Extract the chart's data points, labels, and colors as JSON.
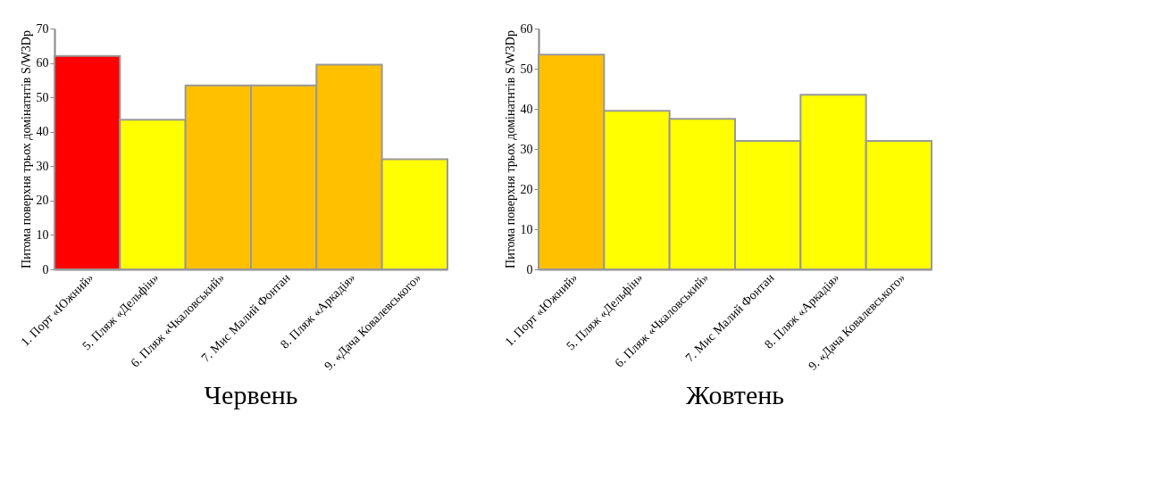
{
  "chart_data": [
    {
      "type": "bar",
      "title": "Червень",
      "ylabel": "Питома поверхня трьох домінатнтів S/W3Dp",
      "categories": [
        "1. Порт «Южний»",
        "5. Пляж «Дельфін»",
        "6. Пляж «Чкаловський»",
        "7. Мис Малий Фонтан",
        "8. Пляж «Аркадія»",
        "9. «Дача Ковалевського»"
      ],
      "values": [
        62,
        43.5,
        53.5,
        53.5,
        59.5,
        32
      ],
      "colors": [
        "#ff0000",
        "#ffff00",
        "#ffc000",
        "#ffc000",
        "#ffc000",
        "#ffff00"
      ],
      "ylim": [
        0,
        70
      ],
      "yticks": [
        0,
        10,
        20,
        30,
        40,
        50,
        60,
        70
      ],
      "grid": false
    },
    {
      "type": "bar",
      "title": "Жовтень",
      "ylabel": "Питома поверхня трьох домінатнтів S/W3Dp",
      "categories": [
        "1. Порт «Южний»",
        "5. Пляж «Дельфін»",
        "6. Пляж «Чкаловський»",
        "7. Мис Малий Фонтан",
        "8. Пляж «Аркадія»",
        "9. «Дача Ковалевського»"
      ],
      "values": [
        53.5,
        39.5,
        37.5,
        32,
        43.5,
        32
      ],
      "colors": [
        "#ffc000",
        "#ffff00",
        "#ffff00",
        "#ffff00",
        "#ffff00",
        "#ffff00"
      ],
      "ylim": [
        0,
        60
      ],
      "yticks": [
        0,
        10,
        20,
        30,
        40,
        50,
        60
      ],
      "grid": false
    }
  ]
}
